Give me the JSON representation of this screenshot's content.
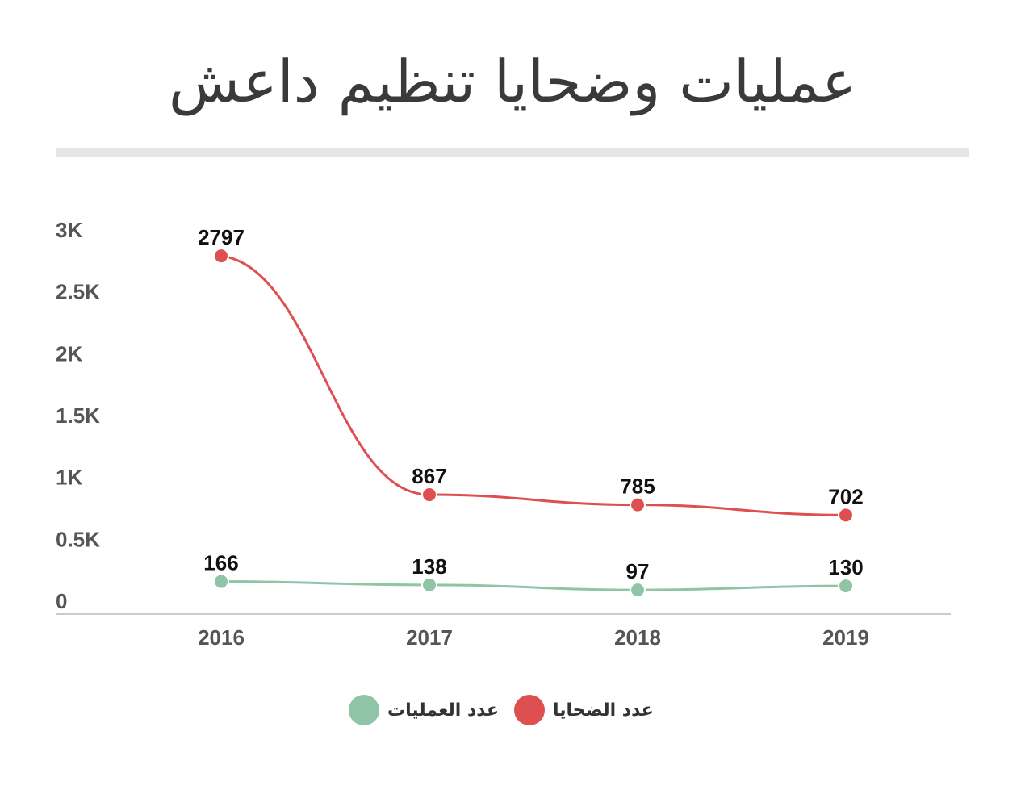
{
  "title": "عمليات وضحايا تنظيم داعش",
  "chart_data": {
    "type": "line",
    "title": "عمليات وضحايا تنظيم داعش",
    "x": [
      "2016",
      "2017",
      "2018",
      "2019"
    ],
    "y_ticks": [
      "0",
      "0.5K",
      "1K",
      "1.5K",
      "2K",
      "2.5K",
      "3K"
    ],
    "ylim": [
      0,
      3000
    ],
    "grid": false,
    "legend_position": "bottom",
    "series": [
      {
        "name": "عدد الضحايا",
        "values": [
          2797,
          867,
          785,
          702
        ],
        "color": "#de5050"
      },
      {
        "name": "عدد العمليات",
        "values": [
          166,
          138,
          97,
          130
        ],
        "color": "#8fc4a6"
      }
    ]
  },
  "legend": [
    {
      "label": "عدد العمليات",
      "color": "#8fc4a6"
    },
    {
      "label": "عدد الضحايا",
      "color": "#de5050"
    }
  ]
}
